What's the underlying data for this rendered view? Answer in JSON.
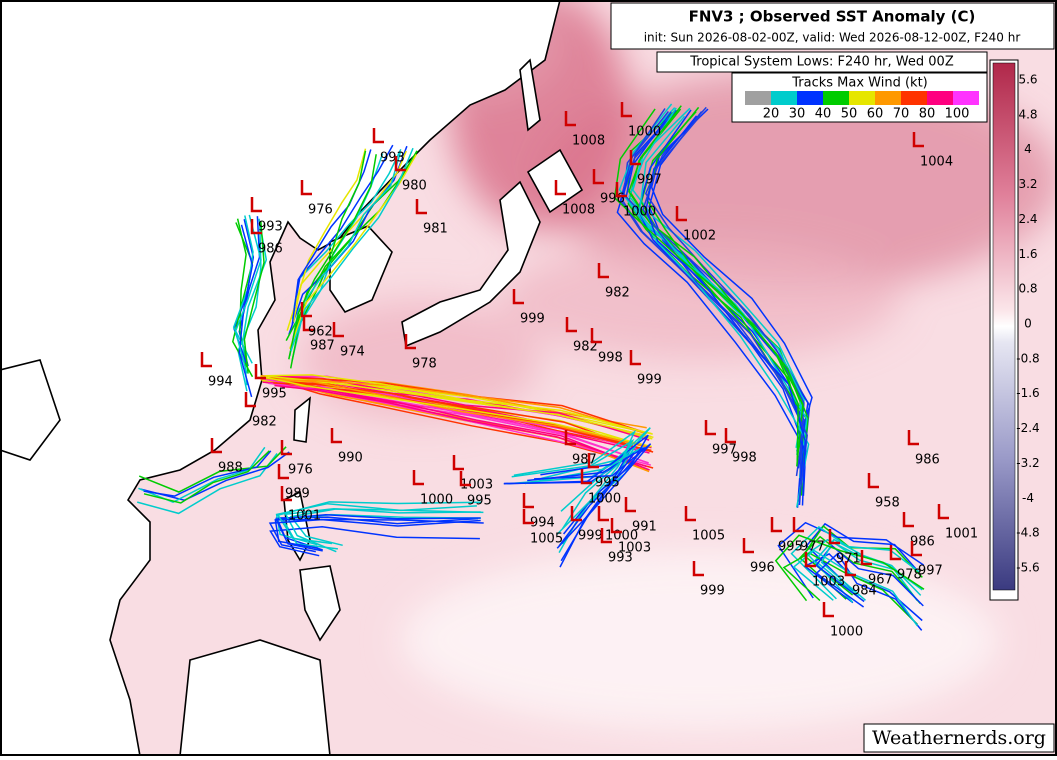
{
  "header": {
    "title": "FNV3 ; Observed SST Anomaly (C)",
    "subtitle": "init: Sun 2026-08-02-00Z, valid: Wed 2026-08-12-00Z, F240 hr"
  },
  "info": "Tropical System Lows: F240 hr, Wed 00Z",
  "legend": {
    "title": "Tracks Max Wind (kt)",
    "labels": [
      "20",
      "30",
      "40",
      "50",
      "60",
      "70",
      "80",
      "100"
    ]
  },
  "colorbar": {
    "labels": [
      "5.6",
      "4.8",
      "4",
      "3.2",
      "2.4",
      "1.6",
      "0.8",
      "0",
      "-0.8",
      "-1.6",
      "-2.4",
      "-3.2",
      "-4",
      "-4.8",
      "-5.6"
    ]
  },
  "pressure_labels": [
    "1008",
    "1000",
    "993",
    "980",
    "997",
    "996",
    "1008",
    "1000",
    "976",
    "981",
    "1002",
    "993",
    "986",
    "1004",
    "982",
    "999",
    "982",
    "998",
    "999",
    "978",
    "974",
    "987",
    "962",
    "994",
    "995",
    "982",
    "988",
    "976",
    "990",
    "989",
    "1001",
    "1003",
    "1000",
    "995",
    "987",
    "995",
    "1000",
    "997",
    "998",
    "986",
    "958",
    "994",
    "1005",
    "999",
    "1000",
    "991",
    "1003",
    "993",
    "1005",
    "999",
    "996",
    "995",
    "977",
    "971",
    "1003",
    "967",
    "984",
    "978",
    "986",
    "1001",
    "997",
    "1000"
  ],
  "watermark": "Weathernerds.org"
}
